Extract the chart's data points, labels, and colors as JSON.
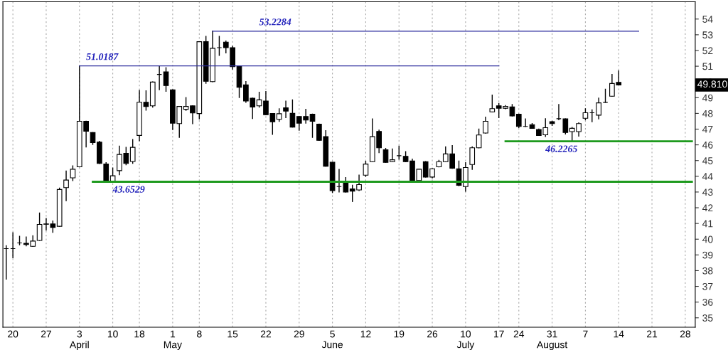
{
  "chart_data": {
    "type": "candlestick",
    "categories": [
      null,
      "20",
      null,
      null,
      null,
      null,
      "27",
      null,
      null,
      null,
      null,
      "3\nApril",
      null,
      null,
      null,
      null,
      "10",
      null,
      null,
      null,
      "18",
      null,
      null,
      null,
      null,
      "1\nMay",
      null,
      null,
      null,
      "8",
      null,
      null,
      null,
      null,
      "15",
      null,
      null,
      null,
      null,
      "22",
      null,
      null,
      null,
      null,
      "29",
      null,
      null,
      null,
      null,
      "5\nJune",
      null,
      null,
      null,
      null,
      "12",
      null,
      null,
      null,
      null,
      "19",
      null,
      null,
      null,
      null,
      "26",
      null,
      null,
      null,
      null,
      "10\nJuly",
      null,
      null,
      null,
      null,
      "17",
      null,
      null,
      "24",
      null,
      null,
      null,
      null,
      "31\nAugust",
      null,
      null,
      null,
      null,
      "7",
      null,
      null,
      null,
      null,
      "14",
      null,
      null,
      null,
      null,
      "21",
      null,
      null,
      null,
      null,
      "28",
      null
    ],
    "ohlc": [
      [
        39.4,
        39.58,
        37.46,
        39.4
      ],
      [
        39.4,
        40.41,
        38.82,
        39.4
      ],
      [
        39.76,
        40.18,
        39.65,
        39.76
      ],
      [
        39.74,
        40.14,
        39.58,
        39.66
      ],
      [
        39.55,
        40.22,
        39.55,
        39.88
      ],
      [
        39.92,
        41.66,
        39.92,
        40.94
      ],
      [
        40.97,
        41.31,
        40.59,
        40.95
      ],
      [
        40.97,
        41.16,
        40.44,
        40.75
      ],
      [
        40.82,
        43.25,
        40.82,
        43.16
      ],
      [
        43.28,
        44.33,
        42.45,
        43.76
      ],
      [
        43.9,
        44.66,
        43.73,
        44.45
      ],
      [
        44.6,
        51.02,
        44.6,
        47.5
      ],
      [
        47.5,
        47.5,
        45.87,
        46.87
      ],
      [
        46.78,
        46.78,
        46.02,
        46.14
      ],
      [
        46.17,
        46.22,
        44.82,
        44.82
      ],
      [
        44.78,
        44.86,
        43.65,
        43.65
      ],
      [
        43.65,
        44.53,
        43.65,
        44.03
      ],
      [
        44.36,
        45.92,
        44.1,
        45.39
      ],
      [
        45.46,
        45.84,
        44.74,
        44.82
      ],
      [
        44.94,
        46.34,
        44.83,
        45.84
      ],
      [
        46.6,
        49.46,
        46.26,
        48.71
      ],
      [
        48.71,
        49.43,
        48.21,
        48.44
      ],
      [
        48.48,
        50.0,
        48.4,
        49.99
      ],
      [
        50.48,
        51.02,
        49.51,
        50.48
      ],
      [
        50.64,
        50.9,
        49.41,
        49.77
      ],
      [
        49.5,
        49.5,
        46.97,
        47.38
      ],
      [
        47.35,
        48.44,
        46.48,
        48.44
      ],
      [
        48.26,
        49.01,
        48.2,
        48.44
      ],
      [
        48.48,
        48.48,
        47.35,
        48.03
      ],
      [
        47.99,
        52.56,
        47.65,
        52.56
      ],
      [
        52.56,
        52.9,
        49.92,
        50.04
      ],
      [
        50.02,
        53.23,
        50.02,
        52.14
      ],
      [
        52.18,
        52.9,
        51.69,
        52.18
      ],
      [
        52.53,
        52.6,
        51.85,
        52.18
      ],
      [
        52.18,
        52.26,
        50.82,
        50.97
      ],
      [
        51.02,
        51.02,
        49.01,
        49.66
      ],
      [
        49.81,
        50.02,
        48.71,
        48.79
      ],
      [
        48.97,
        48.97,
        47.68,
        48.41
      ],
      [
        48.48,
        49.34,
        48.4,
        48.86
      ],
      [
        48.79,
        49.39,
        47.92,
        47.92
      ],
      [
        47.99,
        47.99,
        46.67,
        47.47
      ],
      [
        47.62,
        48.29,
        47.5,
        47.98
      ],
      [
        48.36,
        48.78,
        47.73,
        48.15
      ],
      [
        48.0,
        48.86,
        47.13,
        47.13
      ],
      [
        47.8,
        47.8,
        46.93,
        47.38
      ],
      [
        47.8,
        48.26,
        47.38,
        47.58
      ],
      [
        47.95,
        47.95,
        46.48,
        47.5
      ],
      [
        47.32,
        47.32,
        46.29,
        46.29
      ],
      [
        46.52,
        46.9,
        44.64,
        44.64
      ],
      [
        44.89,
        44.89,
        42.97,
        43.09
      ],
      [
        43.35,
        44.44,
        43.0,
        43.35
      ],
      [
        43.65,
        43.91,
        43.0,
        43.0
      ],
      [
        43.2,
        43.43,
        42.4,
        43.05
      ],
      [
        43.13,
        44.07,
        43.1,
        43.47
      ],
      [
        44.07,
        44.96,
        44.0,
        44.78
      ],
      [
        44.93,
        47.65,
        44.93,
        46.52
      ],
      [
        46.85,
        46.93,
        45.51,
        45.81
      ],
      [
        45.69,
        45.77,
        44.89,
        44.89
      ],
      [
        44.93,
        45.74,
        44.93,
        45.05
      ],
      [
        45.31,
        45.92,
        45.09,
        45.31
      ],
      [
        45.27,
        45.57,
        44.93,
        44.93
      ],
      [
        44.97,
        45.09,
        43.7,
        43.7
      ],
      [
        43.73,
        44.45,
        43.7,
        44.45
      ],
      [
        44.93,
        44.93,
        43.95,
        43.95
      ],
      [
        43.95,
        44.48,
        43.9,
        44.48
      ],
      [
        44.6,
        45.01,
        44.6,
        44.93
      ],
      [
        44.93,
        45.87,
        44.93,
        45.42
      ],
      [
        45.43,
        45.95,
        44.51,
        44.51
      ],
      [
        44.48,
        44.97,
        43.4,
        43.43
      ],
      [
        43.35,
        44.86,
        43.05,
        44.56
      ],
      [
        44.75,
        45.87,
        44.44,
        45.81
      ],
      [
        45.81,
        47.0,
        45.81,
        46.63
      ],
      [
        46.75,
        47.76,
        46.75,
        47.5
      ],
      [
        48.1,
        49.16,
        48.1,
        48.3
      ],
      [
        48.48,
        48.63,
        47.73,
        48.33
      ],
      [
        48.33,
        48.5,
        48.3,
        48.45
      ],
      [
        48.41,
        48.56,
        47.84,
        47.84
      ],
      [
        47.95,
        47.95,
        47.1,
        47.17
      ],
      [
        47.17,
        47.65,
        47.17,
        47.17
      ],
      [
        47.28,
        47.35,
        47.05,
        47.05
      ],
      [
        46.97,
        47.0,
        46.6,
        46.6
      ],
      [
        46.64,
        47.66,
        46.53,
        47.09
      ],
      [
        47.47,
        47.5,
        47.24,
        47.35
      ],
      [
        47.66,
        48.56,
        47.6,
        47.66
      ],
      [
        47.65,
        47.65,
        46.69,
        46.79
      ],
      [
        46.84,
        47.1,
        46.23,
        47.05
      ],
      [
        46.84,
        47.4,
        46.56,
        47.35
      ],
      [
        47.69,
        48.29,
        47.6,
        48.04
      ],
      [
        48.04,
        48.22,
        47.47,
        48.04
      ],
      [
        47.89,
        48.97,
        47.65,
        48.67
      ],
      [
        48.7,
        49.54,
        48.7,
        48.7
      ],
      [
        49.09,
        50.47,
        49.09,
        49.9
      ],
      [
        49.97,
        50.7,
        49.81,
        49.81
      ],
      null,
      null,
      null,
      null,
      null,
      null,
      null,
      null,
      null,
      null,
      null
    ],
    "series": [
      {
        "type": "line",
        "name": "51.0187",
        "color": "#2a2a9c",
        "values": [
          null,
          null,
          null,
          null,
          null,
          null,
          null,
          null,
          null,
          null,
          null,
          51.0187,
          51.0187,
          51.0187,
          51.0187,
          51.0187,
          51.0187,
          51.0187,
          51.0187,
          51.0187,
          51.0187,
          51.0187,
          51.0187,
          51.0187,
          51.0187,
          51.0187,
          51.0187,
          51.0187,
          51.0187,
          51.0187,
          51.0187,
          51.0187,
          51.0187,
          51.0187,
          51.0187,
          51.0187,
          51.0187,
          51.0187,
          51.0187,
          51.0187,
          51.0187,
          51.0187,
          51.0187,
          51.0187,
          51.0187,
          51.0187,
          51.0187,
          51.0187,
          51.0187,
          51.0187,
          51.0187,
          51.0187,
          51.0187,
          51.0187,
          51.0187,
          51.0187,
          51.0187,
          51.0187,
          51.0187,
          51.0187,
          51.0187,
          51.0187,
          51.0187,
          51.0187,
          51.0187,
          51.0187,
          51.0187,
          51.0187,
          51.0187,
          51.0187,
          51.0187,
          51.0187,
          51.0187,
          51.0187,
          51.0187,
          null,
          null,
          null,
          null,
          null,
          null,
          null,
          null,
          null,
          null,
          null,
          null,
          null,
          null,
          null,
          null,
          null,
          null,
          null,
          null,
          null,
          null,
          null,
          null,
          null,
          null,
          null,
          null,
          null
        ]
      },
      {
        "type": "line",
        "name": "53.2284",
        "color": "#2a2a9c",
        "values": [
          null,
          null,
          null,
          null,
          null,
          null,
          null,
          null,
          null,
          null,
          null,
          null,
          null,
          null,
          null,
          null,
          null,
          null,
          null,
          null,
          null,
          null,
          null,
          null,
          null,
          null,
          null,
          null,
          null,
          null,
          null,
          53.2284,
          53.2284,
          53.2284,
          53.2284,
          53.2284,
          53.2284,
          53.2284,
          53.2284,
          53.2284,
          53.2284,
          53.2284,
          53.2284,
          53.2284,
          53.2284,
          53.2284,
          53.2284,
          53.2284,
          53.2284,
          53.2284,
          53.2284,
          53.2284,
          53.2284,
          53.2284,
          53.2284,
          53.2284,
          53.2284,
          53.2284,
          53.2284,
          53.2284,
          53.2284,
          53.2284,
          53.2284,
          53.2284,
          53.2284,
          53.2284,
          53.2284,
          53.2284,
          53.2284,
          53.2284,
          53.2284,
          53.2284,
          53.2284,
          53.2284,
          53.2284,
          53.2284,
          53.2284,
          53.2284,
          53.2284,
          53.2284,
          53.2284,
          53.2284,
          53.2284,
          53.2284,
          53.2284,
          53.2284,
          53.2284,
          53.2284,
          53.2284,
          53.2284,
          53.2284,
          53.2284,
          53.2284,
          53.2284,
          53.2284,
          53.2284,
          null,
          null,
          null,
          null,
          null,
          null,
          null,
          null
        ]
      },
      {
        "type": "line",
        "name": "43.6529",
        "color": "#1e9a1e",
        "values": [
          null,
          null,
          null,
          null,
          null,
          null,
          null,
          null,
          null,
          null,
          null,
          null,
          null,
          43.6529,
          43.6529,
          43.6529,
          43.6529,
          43.6529,
          43.6529,
          43.6529,
          43.6529,
          43.6529,
          43.6529,
          43.6529,
          43.6529,
          43.6529,
          43.6529,
          43.6529,
          43.6529,
          43.6529,
          43.6529,
          43.6529,
          43.6529,
          43.6529,
          43.6529,
          43.6529,
          43.6529,
          43.6529,
          43.6529,
          43.6529,
          43.6529,
          43.6529,
          43.6529,
          43.6529,
          43.6529,
          43.6529,
          43.6529,
          43.6529,
          43.6529,
          43.6529,
          43.6529,
          43.6529,
          43.6529,
          43.6529,
          43.6529,
          43.6529,
          43.6529,
          43.6529,
          43.6529,
          43.6529,
          43.6529,
          43.6529,
          43.6529,
          43.6529,
          43.6529,
          43.6529,
          43.6529,
          43.6529,
          43.6529,
          43.6529,
          43.6529,
          43.6529,
          43.6529,
          43.6529,
          43.6529,
          43.6529,
          43.6529,
          43.6529,
          43.6529,
          43.6529,
          43.6529,
          43.6529,
          43.6529,
          43.6529,
          43.6529,
          43.6529,
          43.6529,
          43.6529,
          43.6529,
          43.6529,
          43.6529,
          43.6529,
          43.6529,
          43.6529,
          43.6529,
          43.6529,
          43.6529,
          43.6529,
          43.6529,
          43.6529,
          43.6529,
          43.6529,
          43.6529,
          43.6529
        ]
      },
      {
        "type": "line",
        "name": "46.2265",
        "color": "#1e9a1e",
        "values": [
          null,
          null,
          null,
          null,
          null,
          null,
          null,
          null,
          null,
          null,
          null,
          null,
          null,
          null,
          null,
          null,
          null,
          null,
          null,
          null,
          null,
          null,
          null,
          null,
          null,
          null,
          null,
          null,
          null,
          null,
          null,
          null,
          null,
          null,
          null,
          null,
          null,
          null,
          null,
          null,
          null,
          null,
          null,
          null,
          null,
          null,
          null,
          null,
          null,
          null,
          null,
          null,
          null,
          null,
          null,
          null,
          null,
          null,
          null,
          null,
          null,
          null,
          null,
          null,
          null,
          null,
          null,
          null,
          null,
          null,
          null,
          null,
          null,
          null,
          null,
          46.2265,
          46.2265,
          46.2265,
          46.2265,
          46.2265,
          46.2265,
          46.2265,
          46.2265,
          46.2265,
          46.2265,
          46.2265,
          46.2265,
          46.2265,
          46.2265,
          46.2265,
          46.2265,
          46.2265,
          46.2265,
          46.2265,
          46.2265,
          46.2265,
          46.2265,
          46.2265,
          46.2265,
          46.2265,
          46.2265,
          46.2265,
          46.2265,
          46.2265
        ]
      }
    ],
    "annotations": [
      "49.810"
    ],
    "ylim": [
      34.4,
      55.1
    ],
    "yticks": [
      35,
      36,
      37,
      38,
      39,
      40,
      41,
      42,
      43,
      44,
      45,
      46,
      47,
      48,
      49,
      50,
      51,
      52,
      53,
      54
    ],
    "grid": "x",
    "line_style": "solid",
    "marker": "none"
  }
}
